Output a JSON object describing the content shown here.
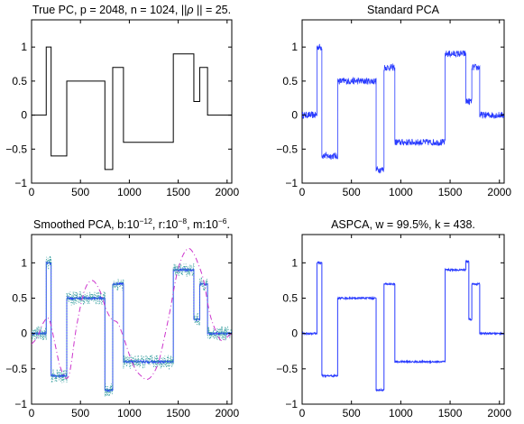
{
  "chart_data": [
    {
      "type": "line",
      "title_parts": [
        {
          "t": "True PC, p = 2048, n = 1024, ||"
        },
        {
          "t": "ρ",
          "style": "italic"
        },
        {
          "t": " || = 25."
        }
      ],
      "xlim": [
        0,
        2048
      ],
      "ylim": [
        -1,
        1.4
      ],
      "xticks": [
        0,
        500,
        1000,
        1500,
        2000
      ],
      "yticks": [
        -1,
        -0.5,
        0,
        0.5,
        1
      ],
      "xtick_labels": [
        "0",
        "500",
        "1000",
        "1500",
        "2000"
      ],
      "ytick_labels": [
        "−1",
        "−0.5",
        "0",
        "0.5",
        "1"
      ],
      "series": [
        {
          "style": "solid",
          "color": "#000000",
          "noise": 0,
          "x": [
            0,
            150,
            150,
            200,
            200,
            360,
            360,
            750,
            750,
            830,
            830,
            940,
            940,
            1450,
            1450,
            1660,
            1660,
            1720,
            1720,
            1800,
            1800,
            2048
          ],
          "y": [
            0,
            0,
            1,
            1,
            -0.6,
            -0.6,
            0.5,
            0.5,
            -0.8,
            -0.8,
            0.7,
            0.7,
            -0.4,
            -0.4,
            0.9,
            0.9,
            0.2,
            0.2,
            0.7,
            0.7,
            0,
            0
          ]
        }
      ]
    },
    {
      "type": "line",
      "title_parts": [
        {
          "t": "Standard PCA"
        }
      ],
      "xlim": [
        0,
        2048
      ],
      "ylim": [
        -1,
        1.4
      ],
      "xticks": [
        0,
        500,
        1000,
        1500,
        2000
      ],
      "yticks": [
        -1,
        -0.5,
        0,
        0.5,
        1
      ],
      "xtick_labels": [
        "0",
        "500",
        "1000",
        "1500",
        "2000"
      ],
      "ytick_labels": [
        "−1",
        "−0.5",
        "0",
        "0.5",
        "1"
      ],
      "series": [
        {
          "style": "noisy",
          "color": "#2a3cff",
          "noise": 0.05,
          "x": [
            0,
            150,
            150,
            200,
            200,
            360,
            360,
            750,
            750,
            830,
            830,
            940,
            940,
            1450,
            1450,
            1660,
            1660,
            1720,
            1720,
            1800,
            1800,
            2048
          ],
          "y": [
            0,
            0,
            1,
            1,
            -0.6,
            -0.6,
            0.5,
            0.5,
            -0.8,
            -0.8,
            0.7,
            0.7,
            -0.4,
            -0.4,
            0.9,
            0.9,
            0.2,
            0.2,
            0.7,
            0.7,
            0,
            0
          ]
        }
      ]
    },
    {
      "type": "line",
      "title_parts": [
        {
          "t": "Smoothed PCA, b:10"
        },
        {
          "t": "−12",
          "style": "sup"
        },
        {
          "t": ", r:10"
        },
        {
          "t": "−8",
          "style": "sup"
        },
        {
          "t": ", m:10"
        },
        {
          "t": "−6",
          "style": "sup"
        },
        {
          "t": "."
        }
      ],
      "xlim": [
        0,
        2048
      ],
      "ylim": [
        -1,
        1.4
      ],
      "xticks": [
        0,
        500,
        1000,
        1500,
        2000
      ],
      "yticks": [
        -1,
        -0.5,
        0,
        0.5,
        1
      ],
      "xtick_labels": [
        "0",
        "500",
        "1000",
        "1500",
        "2000"
      ],
      "ytick_labels": [
        "−1",
        "−0.5",
        "0",
        "0.5",
        "1"
      ],
      "series": [
        {
          "style": "solid",
          "color": "#2a3cff",
          "noise": 0.015,
          "x": [
            0,
            150,
            150,
            200,
            200,
            360,
            360,
            750,
            750,
            830,
            830,
            940,
            940,
            1450,
            1450,
            1660,
            1660,
            1720,
            1720,
            1800,
            1800,
            2048
          ],
          "y": [
            0,
            0,
            1,
            1,
            -0.6,
            -0.6,
            0.5,
            0.5,
            -0.8,
            -0.8,
            0.7,
            0.7,
            -0.4,
            -0.4,
            0.9,
            0.9,
            0.2,
            0.2,
            0.7,
            0.7,
            0,
            0
          ]
        },
        {
          "style": "dotted",
          "color": "#3aa0a0",
          "noise": 0.1,
          "x": [
            0,
            150,
            150,
            200,
            200,
            360,
            360,
            750,
            750,
            830,
            830,
            940,
            940,
            1450,
            1450,
            1660,
            1660,
            1720,
            1720,
            1800,
            1800,
            2048
          ],
          "y": [
            0,
            0,
            1,
            1,
            -0.6,
            -0.6,
            0.5,
            0.5,
            -0.8,
            -0.8,
            0.7,
            0.7,
            -0.4,
            -0.4,
            0.9,
            0.9,
            0.2,
            0.2,
            0.7,
            0.7,
            0,
            0
          ]
        },
        {
          "style": "dashdot",
          "color": "#cc33cc",
          "noise": 0,
          "x": [
            0,
            60,
            120,
            180,
            240,
            300,
            380,
            460,
            540,
            620,
            700,
            760,
            820,
            880,
            940,
            1000,
            1060,
            1120,
            1180,
            1240,
            1300,
            1360,
            1420,
            1480,
            1540,
            1600,
            1650,
            1700,
            1760,
            1820,
            1880,
            1940,
            2000,
            2048
          ],
          "y": [
            -0.15,
            -0.05,
            0.15,
            0.2,
            -0.15,
            -0.5,
            -0.6,
            0.1,
            0.6,
            0.75,
            0.6,
            0.35,
            0.2,
            0.15,
            -0.05,
            -0.3,
            -0.5,
            -0.6,
            -0.65,
            -0.58,
            -0.4,
            -0.05,
            0.35,
            0.8,
            1.08,
            1.2,
            1.15,
            1.0,
            0.75,
            0.3,
            0.05,
            -0.1,
            -0.05,
            0
          ]
        }
      ]
    },
    {
      "type": "line",
      "title_parts": [
        {
          "t": "ASPCA, w = 99.5%, k = 438."
        }
      ],
      "xlim": [
        0,
        2048
      ],
      "ylim": [
        -1,
        1.4
      ],
      "xticks": [
        0,
        500,
        1000,
        1500,
        2000
      ],
      "yticks": [
        -1,
        -0.5,
        0,
        0.5,
        1
      ],
      "xtick_labels": [
        "0",
        "500",
        "1000",
        "1500",
        "2000"
      ],
      "ytick_labels": [
        "−1",
        "−0.5",
        "0",
        "0.5",
        "1"
      ],
      "series": [
        {
          "style": "solid",
          "color": "#2a3cff",
          "noise": 0.012,
          "x": [
            0,
            150,
            150,
            200,
            200,
            360,
            360,
            750,
            750,
            830,
            830,
            940,
            940,
            1450,
            1450,
            1660,
            1660,
            1690,
            1690,
            1720,
            1720,
            1800,
            1800,
            2048
          ],
          "y": [
            0,
            0,
            1,
            1,
            -0.6,
            -0.6,
            0.5,
            0.5,
            -0.8,
            -0.8,
            0.7,
            0.7,
            -0.4,
            -0.4,
            0.9,
            0.9,
            1.02,
            1.02,
            0.2,
            0.2,
            0.7,
            0.7,
            0,
            0
          ]
        }
      ]
    }
  ]
}
